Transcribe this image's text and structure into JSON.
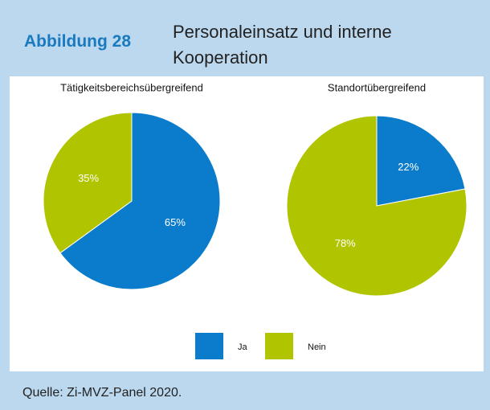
{
  "header": {
    "label": "Abbildung 28",
    "title": "Personaleinsatz und interne Kooperation"
  },
  "chart_data": [
    {
      "type": "pie",
      "title": "Tätigkeitsbereichsübergreifend",
      "categories": [
        "Ja",
        "Nein"
      ],
      "values": [
        65,
        35
      ],
      "value_labels": [
        "65%",
        "35%"
      ],
      "colors": [
        "#0a7ccb",
        "#b0c400"
      ]
    },
    {
      "type": "pie",
      "title": "Standortübergreifend",
      "categories": [
        "Ja",
        "Nein"
      ],
      "values": [
        22,
        78
      ],
      "value_labels": [
        "22%",
        "78%"
      ],
      "colors": [
        "#0a7ccb",
        "#b0c400"
      ]
    }
  ],
  "footer": {
    "source": "Quelle: Zi-MVZ-Panel 2020."
  }
}
